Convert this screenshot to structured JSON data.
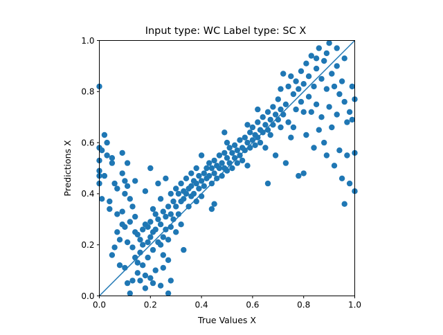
{
  "chart_data": {
    "type": "scatter",
    "title": "Input type: WC Label type: SC    X",
    "xlabel": "True Values X",
    "ylabel": "Predictions X",
    "xlim": [
      0,
      1
    ],
    "ylim": [
      0,
      1
    ],
    "x_ticks": [
      "0.0",
      "0.2",
      "0.4",
      "0.6",
      "0.8",
      "1.0"
    ],
    "y_ticks": [
      "0.0",
      "0.2",
      "0.4",
      "0.6",
      "0.8",
      "1.0"
    ],
    "grid": false,
    "legend": "none",
    "color": "#1f77b4",
    "reference_line": {
      "from": [
        0,
        0
      ],
      "to": [
        1,
        1
      ]
    },
    "points": [
      [
        0.0,
        0.82
      ],
      [
        0.0,
        0.58
      ],
      [
        0.0,
        0.53
      ],
      [
        0.0,
        0.49
      ],
      [
        0.0,
        0.47
      ],
      [
        0.0,
        0.44
      ],
      [
        0.01,
        0.38
      ],
      [
        0.01,
        0.57
      ],
      [
        0.02,
        0.63
      ],
      [
        0.02,
        0.47
      ],
      [
        0.03,
        0.6
      ],
      [
        0.03,
        0.55
      ],
      [
        0.04,
        0.37
      ],
      [
        0.04,
        0.34
      ],
      [
        0.05,
        0.52
      ],
      [
        0.05,
        0.54
      ],
      [
        0.05,
        0.16
      ],
      [
        0.06,
        0.44
      ],
      [
        0.07,
        0.42
      ],
      [
        0.07,
        0.32
      ],
      [
        0.07,
        0.25
      ],
      [
        0.08,
        0.22
      ],
      [
        0.08,
        0.12
      ],
      [
        0.09,
        0.56
      ],
      [
        0.09,
        0.48
      ],
      [
        0.09,
        0.33
      ],
      [
        0.1,
        0.45
      ],
      [
        0.1,
        0.4
      ],
      [
        0.1,
        0.27
      ],
      [
        0.1,
        0.11
      ],
      [
        0.11,
        0.52
      ],
      [
        0.11,
        0.43
      ],
      [
        0.11,
        0.21
      ],
      [
        0.11,
        0.05
      ],
      [
        0.12,
        0.38
      ],
      [
        0.12,
        0.29
      ],
      [
        0.12,
        0.01
      ],
      [
        0.13,
        0.35
      ],
      [
        0.13,
        0.19
      ],
      [
        0.13,
        0.06
      ],
      [
        0.14,
        0.31
      ],
      [
        0.14,
        0.25
      ],
      [
        0.14,
        0.15
      ],
      [
        0.15,
        0.24
      ],
      [
        0.15,
        0.13
      ],
      [
        0.15,
        0.09
      ],
      [
        0.16,
        0.22
      ],
      [
        0.16,
        0.17
      ],
      [
        0.16,
        0.06
      ],
      [
        0.17,
        0.26
      ],
      [
        0.17,
        0.2
      ],
      [
        0.17,
        0.12
      ],
      [
        0.18,
        0.28
      ],
      [
        0.18,
        0.08
      ],
      [
        0.18,
        0.03
      ],
      [
        0.19,
        0.27
      ],
      [
        0.19,
        0.21
      ],
      [
        0.19,
        0.15
      ],
      [
        0.2,
        0.5
      ],
      [
        0.2,
        0.29
      ],
      [
        0.2,
        0.23
      ],
      [
        0.2,
        0.07
      ],
      [
        0.21,
        0.34
      ],
      [
        0.21,
        0.25
      ],
      [
        0.21,
        0.18
      ],
      [
        0.22,
        0.32
      ],
      [
        0.22,
        0.26
      ],
      [
        0.22,
        0.1
      ],
      [
        0.23,
        0.44
      ],
      [
        0.23,
        0.3
      ],
      [
        0.23,
        0.21
      ],
      [
        0.24,
        0.38
      ],
      [
        0.24,
        0.28
      ],
      [
        0.24,
        0.2
      ],
      [
        0.24,
        0.04
      ],
      [
        0.25,
        0.33
      ],
      [
        0.25,
        0.23
      ],
      [
        0.25,
        0.16
      ],
      [
        0.26,
        0.46
      ],
      [
        0.26,
        0.31
      ],
      [
        0.26,
        0.26
      ],
      [
        0.27,
        0.35
      ],
      [
        0.27,
        0.22
      ],
      [
        0.27,
        0.01
      ],
      [
        0.28,
        0.4
      ],
      [
        0.28,
        0.32
      ],
      [
        0.28,
        0.27
      ],
      [
        0.28,
        0.06
      ],
      [
        0.29,
        0.37
      ],
      [
        0.29,
        0.3
      ],
      [
        0.3,
        0.42
      ],
      [
        0.3,
        0.35
      ],
      [
        0.3,
        0.25
      ],
      [
        0.31,
        0.4
      ],
      [
        0.31,
        0.32
      ],
      [
        0.32,
        0.44
      ],
      [
        0.32,
        0.37
      ],
      [
        0.32,
        0.28
      ],
      [
        0.33,
        0.41
      ],
      [
        0.33,
        0.38
      ],
      [
        0.34,
        0.46
      ],
      [
        0.34,
        0.4
      ],
      [
        0.35,
        0.42
      ],
      [
        0.35,
        0.35
      ],
      [
        0.36,
        0.48
      ],
      [
        0.36,
        0.43
      ],
      [
        0.36,
        0.39
      ],
      [
        0.37,
        0.45
      ],
      [
        0.37,
        0.4
      ],
      [
        0.38,
        0.5
      ],
      [
        0.38,
        0.44
      ],
      [
        0.38,
        0.37
      ],
      [
        0.39,
        0.47
      ],
      [
        0.39,
        0.42
      ],
      [
        0.4,
        0.55
      ],
      [
        0.4,
        0.45
      ],
      [
        0.4,
        0.39
      ],
      [
        0.41,
        0.48
      ],
      [
        0.41,
        0.43
      ],
      [
        0.42,
        0.5
      ],
      [
        0.42,
        0.46
      ],
      [
        0.43,
        0.52
      ],
      [
        0.43,
        0.47
      ],
      [
        0.44,
        0.44
      ],
      [
        0.44,
        0.5
      ],
      [
        0.45,
        0.53
      ],
      [
        0.45,
        0.48
      ],
      [
        0.45,
        0.36
      ],
      [
        0.46,
        0.51
      ],
      [
        0.46,
        0.46
      ],
      [
        0.47,
        0.55
      ],
      [
        0.47,
        0.5
      ],
      [
        0.48,
        0.52
      ],
      [
        0.48,
        0.47
      ],
      [
        0.49,
        0.56
      ],
      [
        0.49,
        0.5
      ],
      [
        0.49,
        0.64
      ],
      [
        0.5,
        0.54
      ],
      [
        0.5,
        0.49
      ],
      [
        0.5,
        0.6
      ],
      [
        0.51,
        0.58
      ],
      [
        0.51,
        0.52
      ],
      [
        0.52,
        0.56
      ],
      [
        0.52,
        0.5
      ],
      [
        0.53,
        0.59
      ],
      [
        0.53,
        0.54
      ],
      [
        0.54,
        0.57
      ],
      [
        0.54,
        0.52
      ],
      [
        0.55,
        0.61
      ],
      [
        0.55,
        0.55
      ],
      [
        0.56,
        0.58
      ],
      [
        0.56,
        0.53
      ],
      [
        0.57,
        0.62
      ],
      [
        0.57,
        0.57
      ],
      [
        0.58,
        0.6
      ],
      [
        0.58,
        0.51
      ],
      [
        0.59,
        0.64
      ],
      [
        0.59,
        0.58
      ],
      [
        0.6,
        0.66
      ],
      [
        0.6,
        0.61
      ],
      [
        0.61,
        0.63
      ],
      [
        0.61,
        0.59
      ],
      [
        0.62,
        0.68
      ],
      [
        0.62,
        0.62
      ],
      [
        0.63,
        0.65
      ],
      [
        0.63,
        0.6
      ],
      [
        0.64,
        0.7
      ],
      [
        0.64,
        0.64
      ],
      [
        0.65,
        0.67
      ],
      [
        0.65,
        0.58
      ],
      [
        0.66,
        0.72
      ],
      [
        0.66,
        0.65
      ],
      [
        0.67,
        0.69
      ],
      [
        0.67,
        0.63
      ],
      [
        0.68,
        0.74
      ],
      [
        0.68,
        0.67
      ],
      [
        0.69,
        0.71
      ],
      [
        0.69,
        0.55
      ],
      [
        0.7,
        0.77
      ],
      [
        0.7,
        0.69
      ],
      [
        0.71,
        0.73
      ],
      [
        0.71,
        0.66
      ],
      [
        0.72,
        0.87
      ],
      [
        0.72,
        0.71
      ],
      [
        0.73,
        0.75
      ],
      [
        0.73,
        0.52
      ],
      [
        0.74,
        0.82
      ],
      [
        0.74,
        0.68
      ],
      [
        0.75,
        0.86
      ],
      [
        0.75,
        0.62
      ],
      [
        0.76,
        0.79
      ],
      [
        0.76,
        0.66
      ],
      [
        0.77,
        0.84
      ],
      [
        0.77,
        0.73
      ],
      [
        0.78,
        0.81
      ],
      [
        0.78,
        0.47
      ],
      [
        0.79,
        0.88
      ],
      [
        0.79,
        0.76
      ],
      [
        0.8,
        0.83
      ],
      [
        0.8,
        0.72
      ],
      [
        0.81,
        0.91
      ],
      [
        0.81,
        0.63
      ],
      [
        0.82,
        0.86
      ],
      [
        0.82,
        0.78
      ],
      [
        0.83,
        0.94
      ],
      [
        0.83,
        0.72
      ],
      [
        0.84,
        0.82
      ],
      [
        0.84,
        0.58
      ],
      [
        0.85,
        0.89
      ],
      [
        0.85,
        0.75
      ],
      [
        0.86,
        0.97
      ],
      [
        0.86,
        0.65
      ],
      [
        0.87,
        0.85
      ],
      [
        0.87,
        0.7
      ],
      [
        0.88,
        0.92
      ],
      [
        0.88,
        0.6
      ],
      [
        0.89,
        0.81
      ],
      [
        0.89,
        0.55
      ],
      [
        0.9,
        0.99
      ],
      [
        0.9,
        0.74
      ],
      [
        0.91,
        0.87
      ],
      [
        0.91,
        0.66
      ],
      [
        0.92,
        0.82
      ],
      [
        0.92,
        0.51
      ],
      [
        0.93,
        0.9
      ],
      [
        0.93,
        0.71
      ],
      [
        0.94,
        0.79
      ],
      [
        0.94,
        0.57
      ],
      [
        0.95,
        0.84
      ],
      [
        0.95,
        0.46
      ],
      [
        0.96,
        0.76
      ],
      [
        0.96,
        0.36
      ],
      [
        0.97,
        0.68
      ],
      [
        0.97,
        0.55
      ],
      [
        0.98,
        0.72
      ],
      [
        0.98,
        0.44
      ],
      [
        0.99,
        0.82
      ],
      [
        0.99,
        0.69
      ],
      [
        1.0,
        0.77
      ],
      [
        1.0,
        0.56
      ],
      [
        1.0,
        0.41
      ],
      [
        0.06,
        0.19
      ],
      [
        0.09,
        0.28
      ],
      [
        0.14,
        0.45
      ],
      [
        0.18,
        0.41
      ],
      [
        0.21,
        0.05
      ],
      [
        0.25,
        0.11
      ],
      [
        0.27,
        0.14
      ],
      [
        0.33,
        0.18
      ],
      [
        0.44,
        0.34
      ],
      [
        0.58,
        0.67
      ],
      [
        0.62,
        0.73
      ],
      [
        0.66,
        0.44
      ],
      [
        0.71,
        0.81
      ],
      [
        0.8,
        0.48
      ],
      [
        0.85,
        0.93
      ],
      [
        0.89,
        0.95
      ],
      [
        0.93,
        0.97
      ],
      [
        0.96,
        0.93
      ]
    ]
  }
}
